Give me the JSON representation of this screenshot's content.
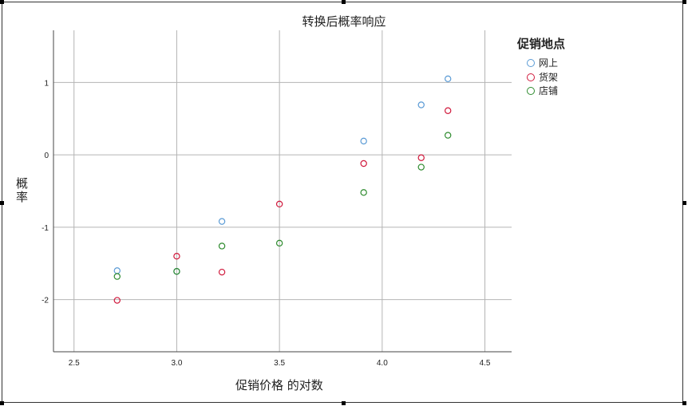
{
  "chart_data": {
    "type": "scatter",
    "title": "转换后概率响应",
    "xlabel": "促销价格 的对数",
    "ylabel": "概率",
    "xlim": [
      2.4,
      4.63
    ],
    "ylim": [
      -2.72,
      1.72
    ],
    "xticks": [
      2.5,
      3.0,
      3.5,
      4.0,
      4.5
    ],
    "xtick_labels": [
      "2.5",
      "3.0",
      "3.5",
      "4.0",
      "4.5"
    ],
    "yticks": [
      1,
      0,
      -1,
      -2
    ],
    "ytick_labels": [
      "1",
      "0",
      "-1",
      "-2"
    ],
    "grid": true,
    "legend_title": "促销地点",
    "legend_position": "right",
    "series": [
      {
        "name": "网上",
        "color": "#5b9bd5",
        "x": [
          2.71,
          3.0,
          3.22,
          3.91,
          4.19,
          4.32
        ],
        "y": [
          -1.6,
          -1.61,
          -0.92,
          0.19,
          0.69,
          1.05
        ]
      },
      {
        "name": "货架",
        "color": "#d0193c",
        "x": [
          2.71,
          3.0,
          3.22,
          3.5,
          3.91,
          4.19,
          4.32
        ],
        "y": [
          -2.01,
          -1.4,
          -1.62,
          -0.68,
          -0.12,
          -0.04,
          0.61
        ]
      },
      {
        "name": "店铺",
        "color": "#2e8b2e",
        "x": [
          2.71,
          3.0,
          3.22,
          3.5,
          3.91,
          4.19,
          4.32
        ],
        "y": [
          -1.68,
          -1.61,
          -1.26,
          -1.22,
          -0.52,
          -0.17,
          0.27
        ]
      }
    ]
  }
}
